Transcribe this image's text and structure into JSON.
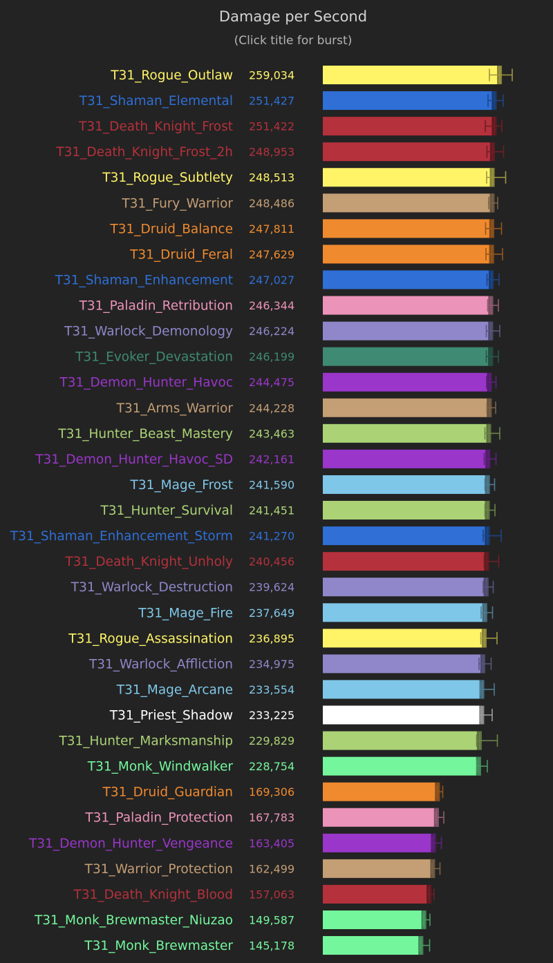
{
  "header": {
    "title": "Damage per Second",
    "subtitle": "(Click title for burst)"
  },
  "chart_data": {
    "type": "bar",
    "orientation": "horizontal",
    "title": "Damage per Second",
    "subtitle": "(Click title for burst)",
    "xlim": [
      0,
      320000
    ],
    "grid": false,
    "legend": "none",
    "class_colors": {
      "rogue": "#fff468",
      "shaman": "#2f6fd6",
      "death_knight": "#b5313c",
      "warrior": "#c49e74",
      "druid": "#f08a2e",
      "paladin": "#eb93b8",
      "warlock": "#8f87c9",
      "evoker": "#3f8a72",
      "demon_hunter": "#9a36c9",
      "hunter": "#abd376",
      "mage": "#7fc7e8",
      "priest": "#ffffff",
      "monk": "#74f79c"
    },
    "categories": [
      "T31_Rogue_Outlaw",
      "T31_Shaman_Elemental",
      "T31_Death_Knight_Frost",
      "T31_Death_Knight_Frost_2h",
      "T31_Rogue_Subtlety",
      "T31_Fury_Warrior",
      "T31_Druid_Balance",
      "T31_Druid_Feral",
      "T31_Shaman_Enhancement",
      "T31_Paladin_Retribution",
      "T31_Warlock_Demonology",
      "T31_Evoker_Devastation",
      "T31_Demon_Hunter_Havoc",
      "T31_Arms_Warrior",
      "T31_Hunter_Beast_Mastery",
      "T31_Demon_Hunter_Havoc_SD",
      "T31_Mage_Frost",
      "T31_Hunter_Survival",
      "T31_Shaman_Enhancement_Storm",
      "T31_Death_Knight_Unholy",
      "T31_Warlock_Destruction",
      "T31_Mage_Fire",
      "T31_Rogue_Assassination",
      "T31_Warlock_Affliction",
      "T31_Mage_Arcane",
      "T31_Priest_Shadow",
      "T31_Hunter_Marksmanship",
      "T31_Monk_Windwalker",
      "T31_Druid_Guardian",
      "T31_Paladin_Protection",
      "T31_Demon_Hunter_Vengeance",
      "T31_Warrior_Protection",
      "T31_Death_Knight_Blood",
      "T31_Monk_Brewmaster_Niuzao",
      "T31_Monk_Brewmaster"
    ],
    "value_labels": [
      "259,034",
      "251,427",
      "251,422",
      "248,953",
      "248,513",
      "248,486",
      "247,811",
      "247,629",
      "247,027",
      "246,344",
      "246,224",
      "246,199",
      "244,475",
      "244,228",
      "243,463",
      "242,161",
      "241,590",
      "241,451",
      "241,270",
      "240,456",
      "239,624",
      "237,649",
      "236,895",
      "234,975",
      "233,554",
      "233,225",
      "229,829",
      "228,754",
      "169,306",
      "167,783",
      "163,405",
      "162,499",
      "157,063",
      "149,587",
      "145,178"
    ],
    "values": [
      259034,
      251427,
      251422,
      248953,
      248513,
      248486,
      247811,
      247629,
      247027,
      246344,
      246224,
      246199,
      244475,
      244228,
      243463,
      242161,
      241590,
      241451,
      241270,
      240456,
      239624,
      237649,
      236895,
      234975,
      233554,
      233225,
      229829,
      228754,
      169306,
      167783,
      163405,
      162499,
      157063,
      149587,
      145178
    ],
    "classes": [
      "rogue",
      "shaman",
      "death_knight",
      "death_knight",
      "rogue",
      "warrior",
      "druid",
      "druid",
      "shaman",
      "paladin",
      "warlock",
      "evoker",
      "demon_hunter",
      "warrior",
      "hunter",
      "demon_hunter",
      "mage",
      "hunter",
      "shaman",
      "death_knight",
      "warlock",
      "mage",
      "rogue",
      "warlock",
      "mage",
      "priest",
      "hunter",
      "monk",
      "druid",
      "paladin",
      "demon_hunter",
      "warrior",
      "death_knight",
      "monk",
      "monk"
    ],
    "error_low": [
      241000,
      239000,
      235000,
      237500,
      237000,
      240000,
      235500,
      236000,
      237500,
      238500,
      236500,
      236500,
      237000,
      237500,
      234500,
      233500,
      234500,
      234500,
      232000,
      233500,
      232000,
      229000,
      228500,
      226000,
      227500,
      227000,
      222500,
      223000,
      165000,
      163000,
      158000,
      157500,
      152500,
      145500,
      140500
    ],
    "error_high": [
      274000,
      261000,
      259000,
      261500,
      264500,
      253000,
      258500,
      260000,
      255000,
      254000,
      256000,
      254000,
      250500,
      250000,
      256000,
      250500,
      248500,
      249000,
      258000,
      254500,
      246500,
      245500,
      252000,
      243500,
      248000,
      245000,
      252500,
      238000,
      173500,
      175000,
      171500,
      169500,
      161000,
      155000,
      154500
    ]
  }
}
